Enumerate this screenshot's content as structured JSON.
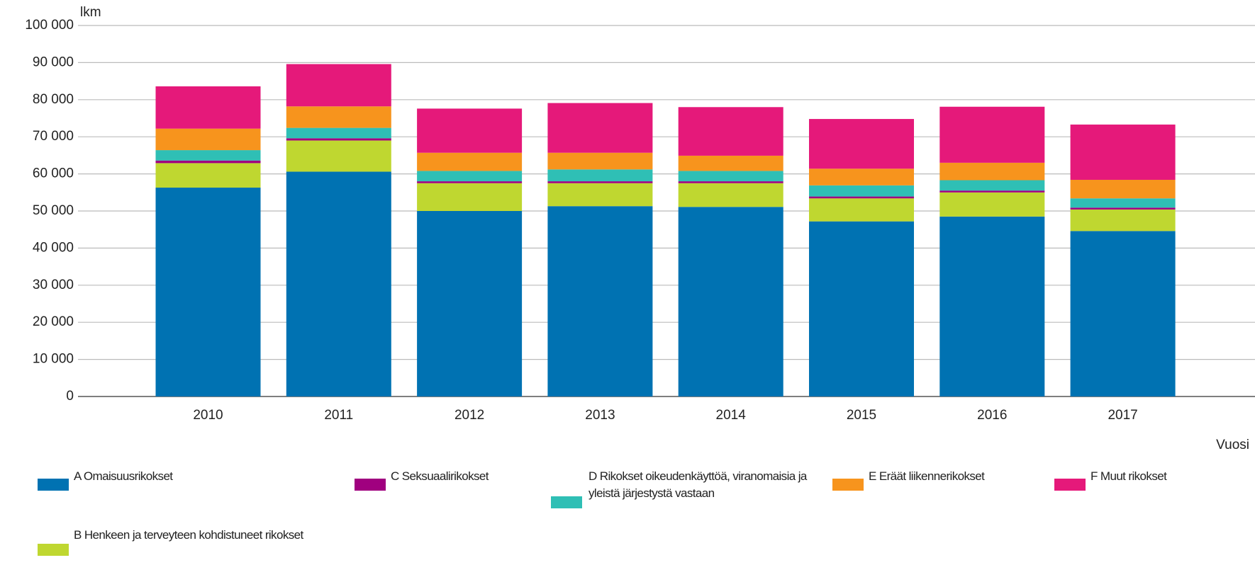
{
  "chart_data": {
    "type": "stacked_bar",
    "y_label": "lkm",
    "x_label": "Vuosi",
    "categories": [
      "2010",
      "2011",
      "2012",
      "2013",
      "2014",
      "2015",
      "2016",
      "2017"
    ],
    "series": [
      {
        "name": "A Omaisuusrikokset",
        "color": "#0072b2",
        "values": [
          56300,
          60600,
          50000,
          51300,
          51100,
          47200,
          48500,
          44600
        ]
      },
      {
        "name": "B Henkeen ja terveyteen kohdistuneet rikokset",
        "color": "#bfd730",
        "values": [
          6600,
          8400,
          7500,
          6200,
          6400,
          6200,
          6500,
          5800
        ]
      },
      {
        "name": "C Seksuaalirikokset",
        "color": "#a0007f",
        "values": [
          700,
          600,
          500,
          500,
          500,
          500,
          500,
          500
        ]
      },
      {
        "name": "D Rikokset oikeudenkäyttöä, viranomaisia ja yleistä järjestystä vastaan",
        "color": "#2fbfb5",
        "values": [
          2800,
          2800,
          2800,
          3200,
          2800,
          3000,
          2800,
          2500
        ]
      },
      {
        "name": "E Eräät liikennerikokset",
        "color": "#f7941d",
        "values": [
          5800,
          5800,
          4900,
          4500,
          4100,
          4500,
          4700,
          5000
        ]
      },
      {
        "name": "F Muut rikokset",
        "color": "#e5197a",
        "values": [
          11400,
          11400,
          11900,
          13400,
          13100,
          13400,
          15100,
          14900
        ]
      }
    ],
    "ylim": [
      0,
      100000
    ],
    "yticks": [
      0,
      {
        "value": 10000,
        "label": "10 000"
      },
      {
        "value": 20000,
        "label": "20 000"
      },
      {
        "value": 30000,
        "label": "30 000"
      },
      {
        "value": 40000,
        "label": "40 000"
      },
      {
        "value": 50000,
        "label": "50 000"
      },
      {
        "value": 60000,
        "label": "60 000"
      },
      {
        "value": 70000,
        "label": "70 000"
      },
      {
        "value": 80000,
        "label": "80 000"
      },
      {
        "value": 90000,
        "label": "90 000"
      },
      {
        "value": 100000,
        "label": "100 000"
      }
    ],
    "grid": true
  }
}
